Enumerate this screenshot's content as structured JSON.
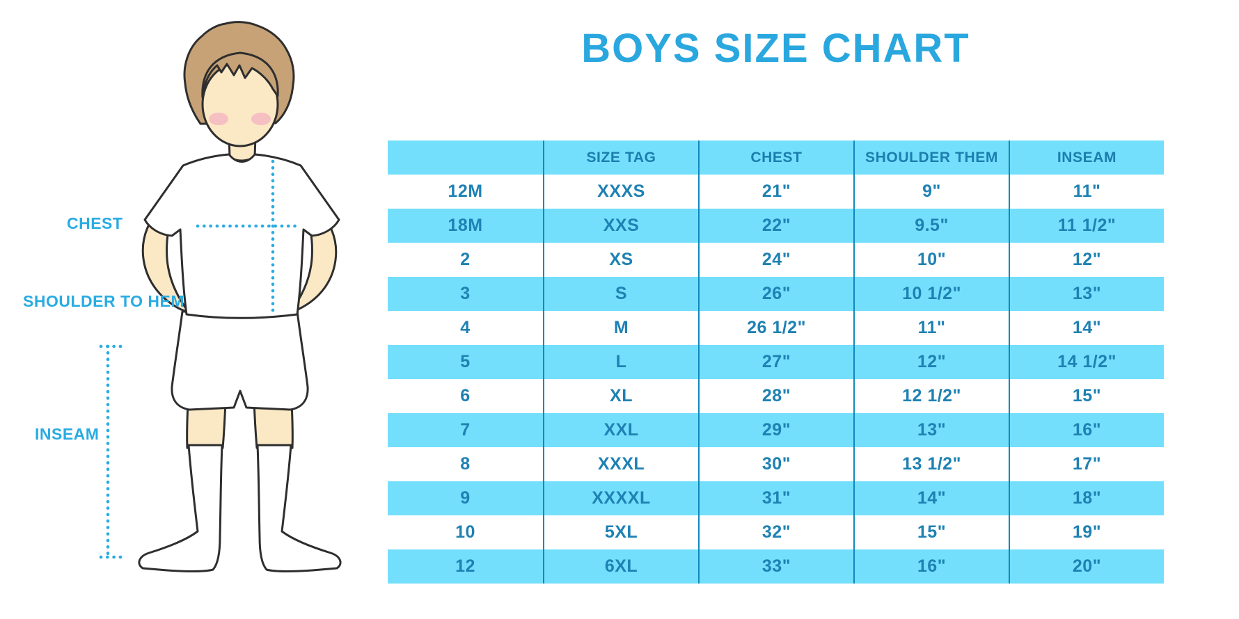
{
  "title": "BOYS SIZE CHART",
  "colors": {
    "accent_blue": "#29abe2",
    "title_blue": "#2aa7de",
    "stripe_blue": "#73dffc",
    "rule_blue": "#1088bc",
    "table_text_blue": "#1e81b3",
    "skin": "#fbe8c5",
    "hair": "#c6a276",
    "blush": "#f3aec1",
    "outline": "#2e2e2e"
  },
  "diagram": {
    "chest_label": "CHEST",
    "shoulder_to_hem_label": "SHOULDER TO HEM",
    "inseam_label": "INSEAM"
  },
  "chart_data": {
    "type": "table",
    "columns": [
      "",
      "SIZE TAG",
      "CHEST",
      "SHOULDER THEM",
      "INSEAM"
    ],
    "rows": [
      [
        "12M",
        "XXXS",
        "21\"",
        "9\"",
        "11\""
      ],
      [
        "18M",
        "XXS",
        "22\"",
        "9.5\"",
        "11 1/2\""
      ],
      [
        "2",
        "XS",
        "24\"",
        "10\"",
        "12\""
      ],
      [
        "3",
        "S",
        "26\"",
        "10 1/2\"",
        "13\""
      ],
      [
        "4",
        "M",
        "26 1/2\"",
        "11\"",
        "14\""
      ],
      [
        "5",
        "L",
        "27\"",
        "12\"",
        "14 1/2\""
      ],
      [
        "6",
        "XL",
        "28\"",
        "12 1/2\"",
        "15\""
      ],
      [
        "7",
        "XXL",
        "29\"",
        "13\"",
        "16\""
      ],
      [
        "8",
        "XXXL",
        "30\"",
        "13 1/2\"",
        "17\""
      ],
      [
        "9",
        "XXXXL",
        "31\"",
        "14\"",
        "18\""
      ],
      [
        "10",
        "5XL",
        "32\"",
        "15\"",
        "19\""
      ],
      [
        "12",
        "6XL",
        "33\"",
        "16\"",
        "20\""
      ]
    ],
    "title": "BOYS SIZE CHART",
    "stripe_pattern": "header blue, then rows alternate white/blue starting white",
    "legend_position": "none",
    "grid": "vertical column rules only"
  }
}
